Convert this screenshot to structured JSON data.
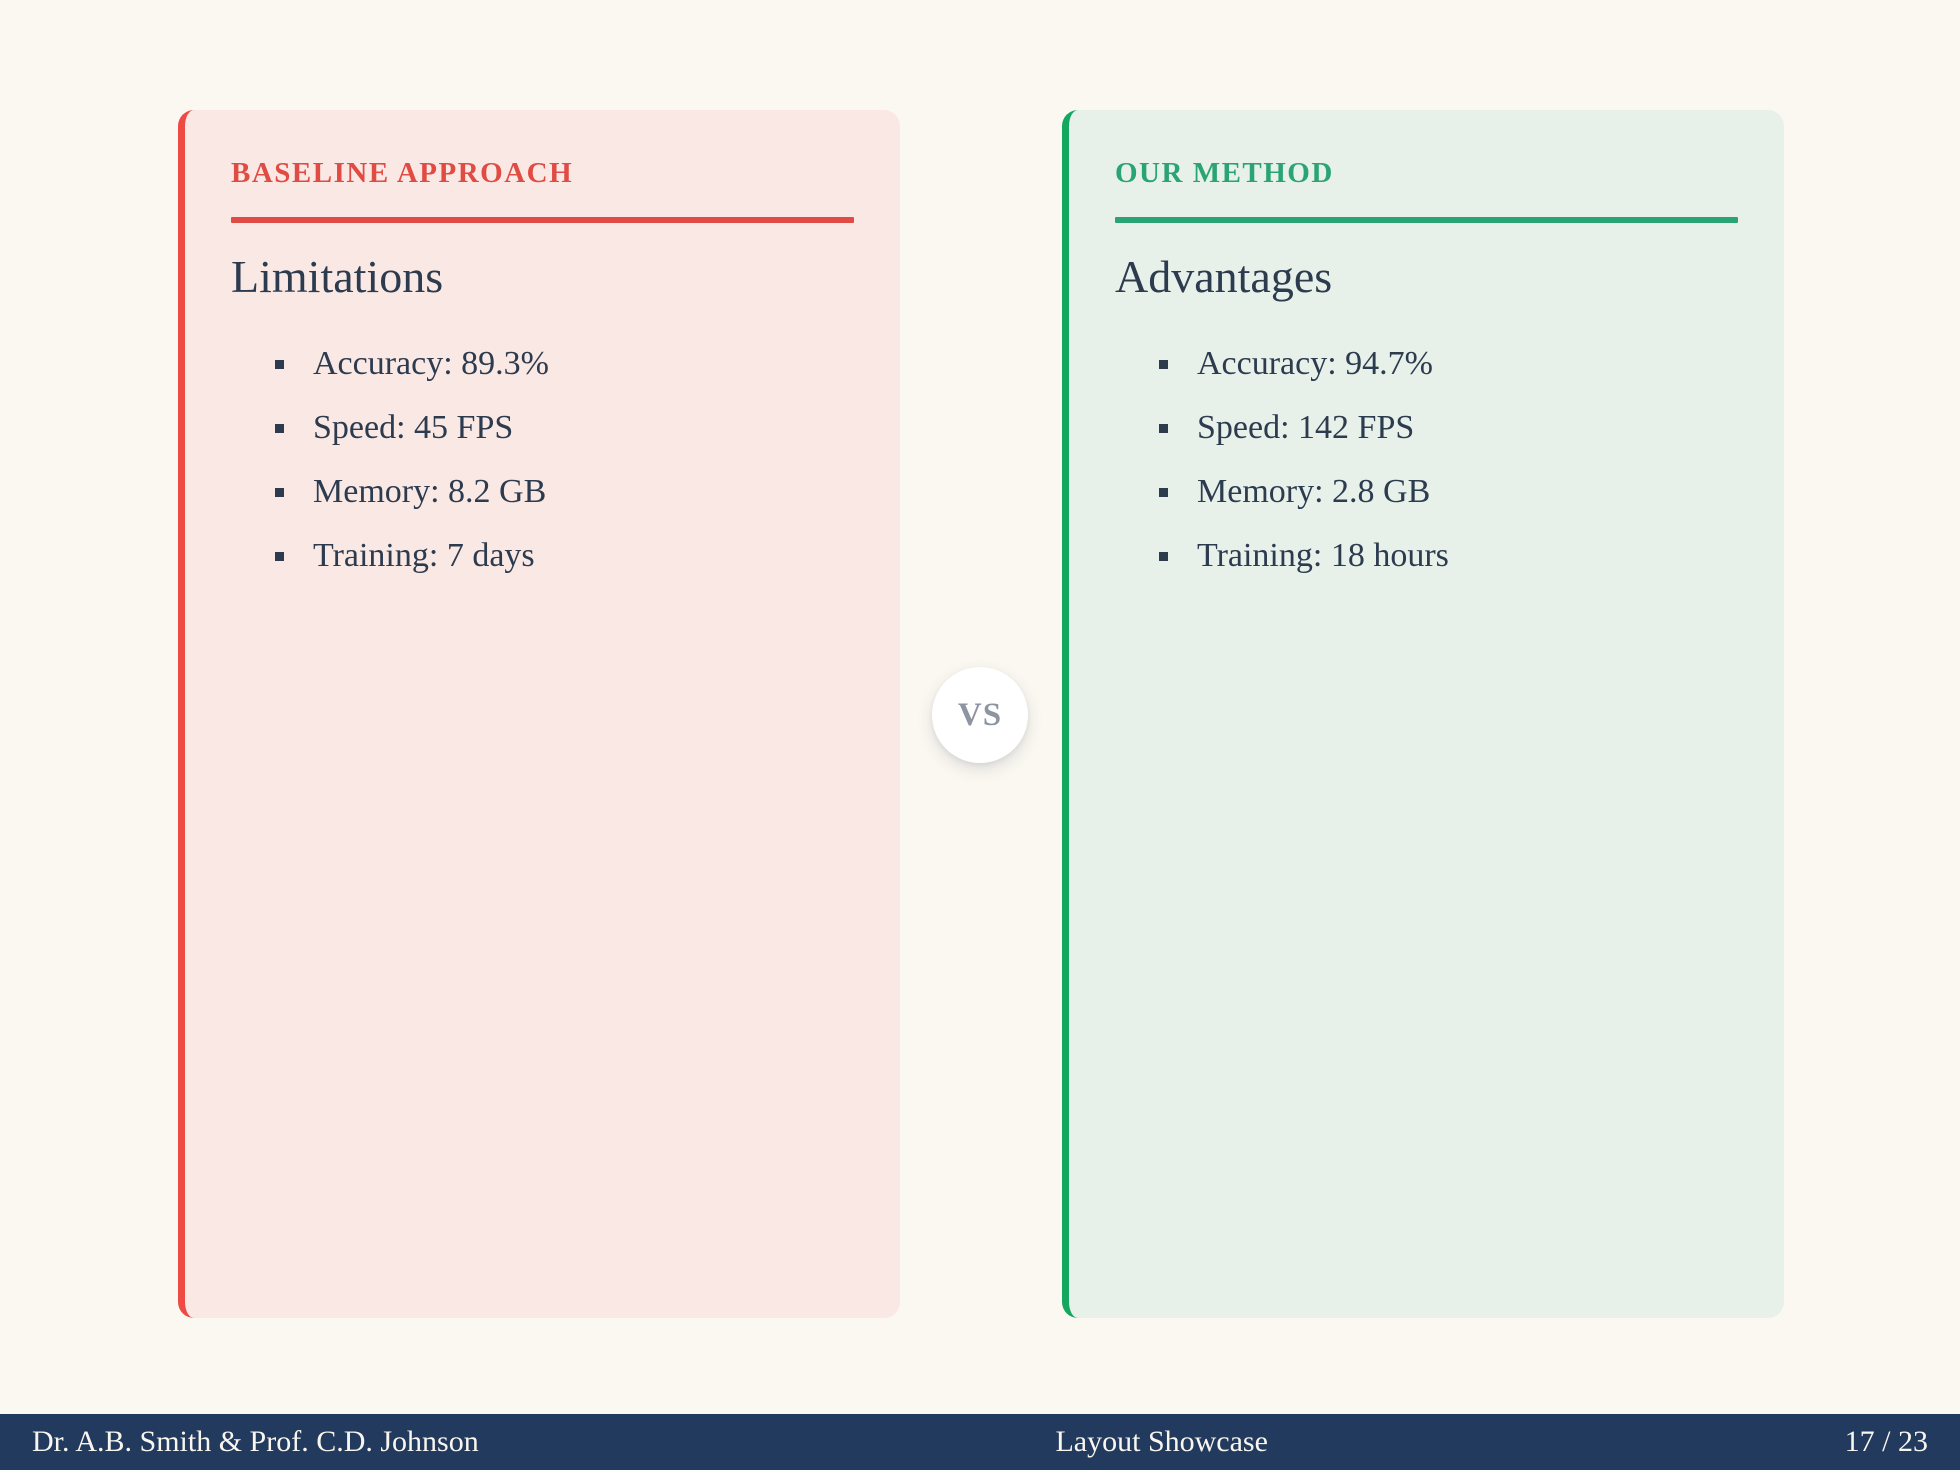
{
  "page": {
    "background": "#FBF8F1",
    "ink_color": "#2D3B4F"
  },
  "panels": [
    {
      "eyebrow": "BASELINE APPROACH",
      "title": "Limitations",
      "items": [
        "Accuracy: 89.3%",
        "Speed: 45 FPS",
        "Memory: 8.2 GB",
        "Training: 7 days"
      ],
      "accent": "#E04B43",
      "border": "#EF4B45",
      "bg": "#FAE8E4"
    },
    {
      "eyebrow": "OUR METHOD",
      "title": "Advantages",
      "items": [
        "Accuracy: 94.7%",
        "Speed: 142 FPS",
        "Memory: 2.8 GB",
        "Training: 18 hours"
      ],
      "accent": "#2AA472",
      "border": "#13A75F",
      "bg": "#E7F1EA"
    }
  ],
  "vs_badge": {
    "label": "VS",
    "text_color": "#8D95A2",
    "bg": "#FFFFFF"
  },
  "footer": {
    "left": "Dr. A.B. Smith & Prof. C.D. Johnson",
    "center": "Layout Showcase",
    "right": "17 / 23",
    "bg": "#223A5E",
    "text_color": "#F8F6EF"
  }
}
